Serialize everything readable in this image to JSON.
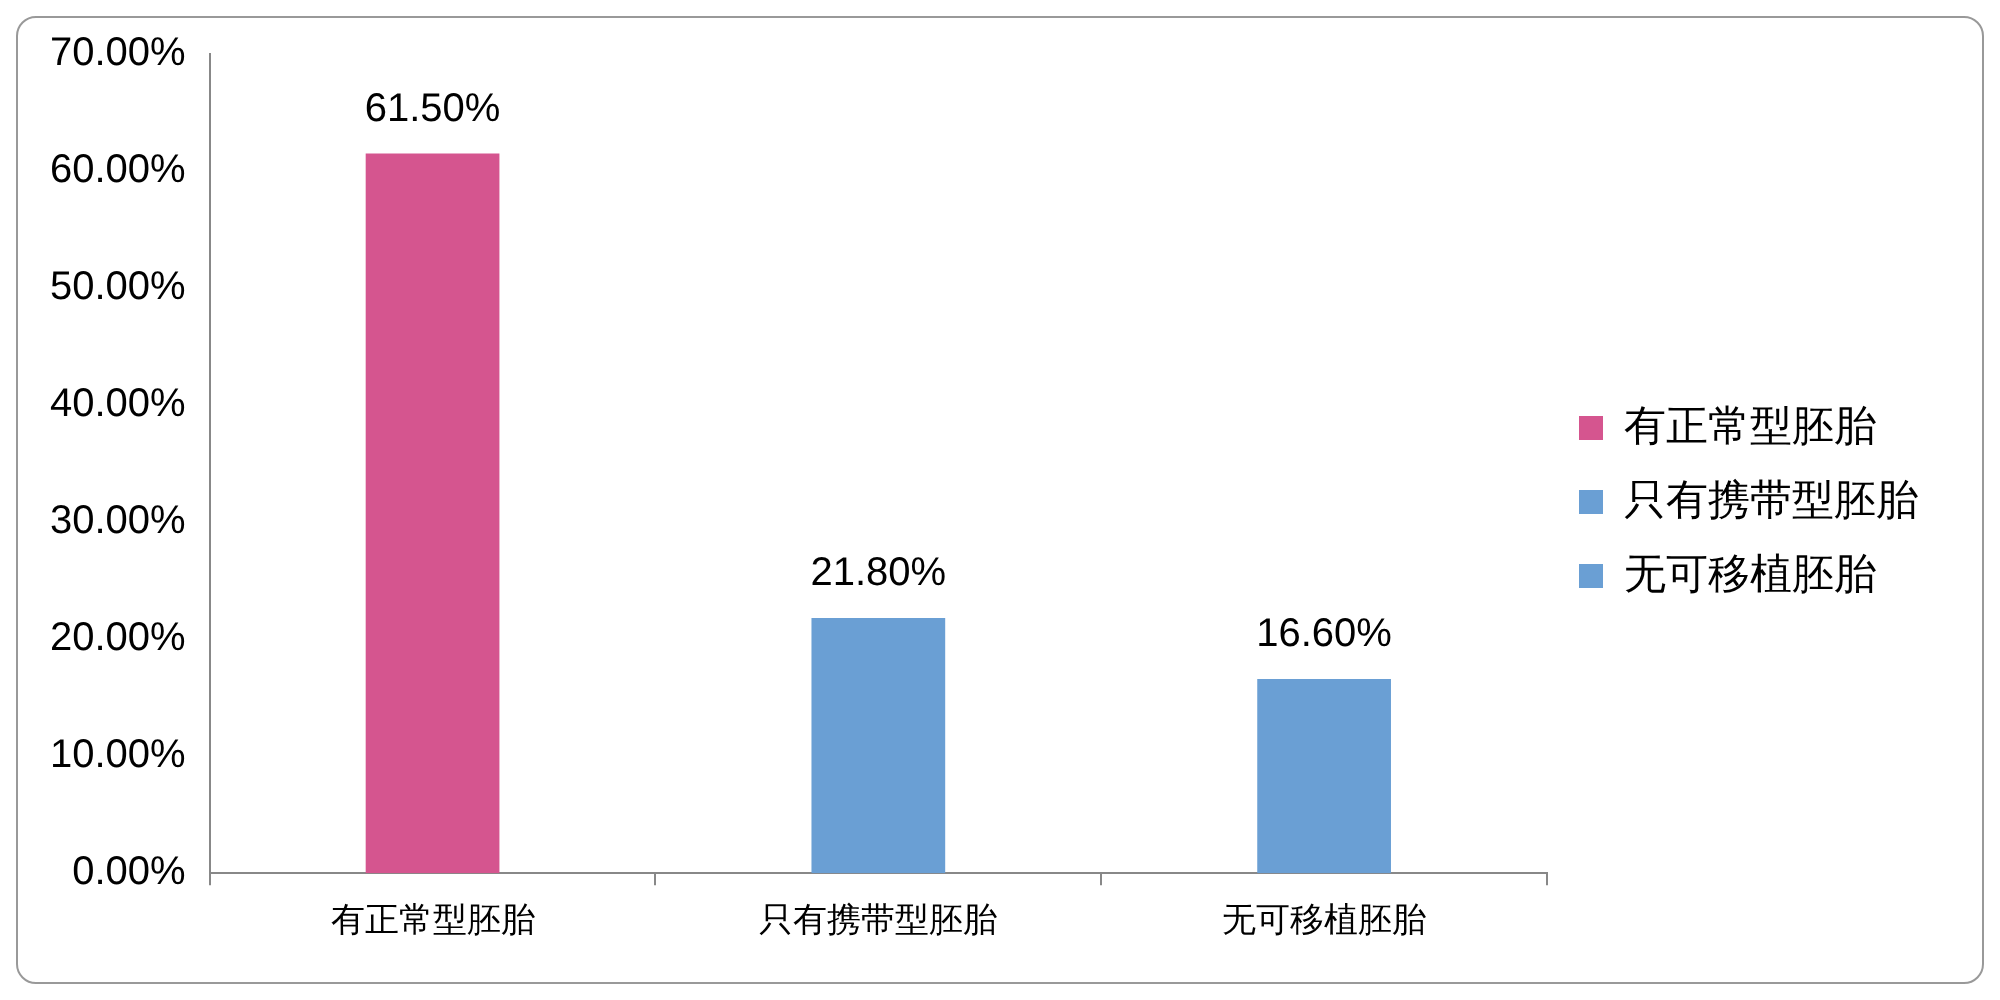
{
  "chart_data": {
    "type": "bar",
    "categories": [
      "有正常型胚胎",
      "只有携带型胚胎",
      "无可移植胚胎"
    ],
    "series": [
      {
        "name": "有正常型胚胎",
        "color": "#d5558f",
        "values": [
          61.5,
          null,
          null
        ],
        "value_labels": [
          "61.50%",
          null,
          null
        ]
      },
      {
        "name": "只有携带型胚胎",
        "color": "#6a9fd4",
        "values": [
          null,
          21.8,
          null
        ],
        "value_labels": [
          null,
          "21.80%",
          null
        ]
      },
      {
        "name": "无可移植胚胎",
        "color": "#6a9fd4",
        "values": [
          null,
          null,
          16.6
        ],
        "value_labels": [
          null,
          null,
          "16.60%"
        ]
      }
    ],
    "ylim": [
      0,
      70
    ],
    "yticks": [
      {
        "value": 0,
        "label": "0.00%"
      },
      {
        "value": 10,
        "label": "10.00%"
      },
      {
        "value": 20,
        "label": "20.00%"
      },
      {
        "value": 30,
        "label": "30.00%"
      },
      {
        "value": 40,
        "label": "40.00%"
      },
      {
        "value": 50,
        "label": "50.00%"
      },
      {
        "value": 60,
        "label": "60.00%"
      },
      {
        "value": 70,
        "label": "70.00%"
      }
    ],
    "grid": false,
    "legend": "right"
  }
}
